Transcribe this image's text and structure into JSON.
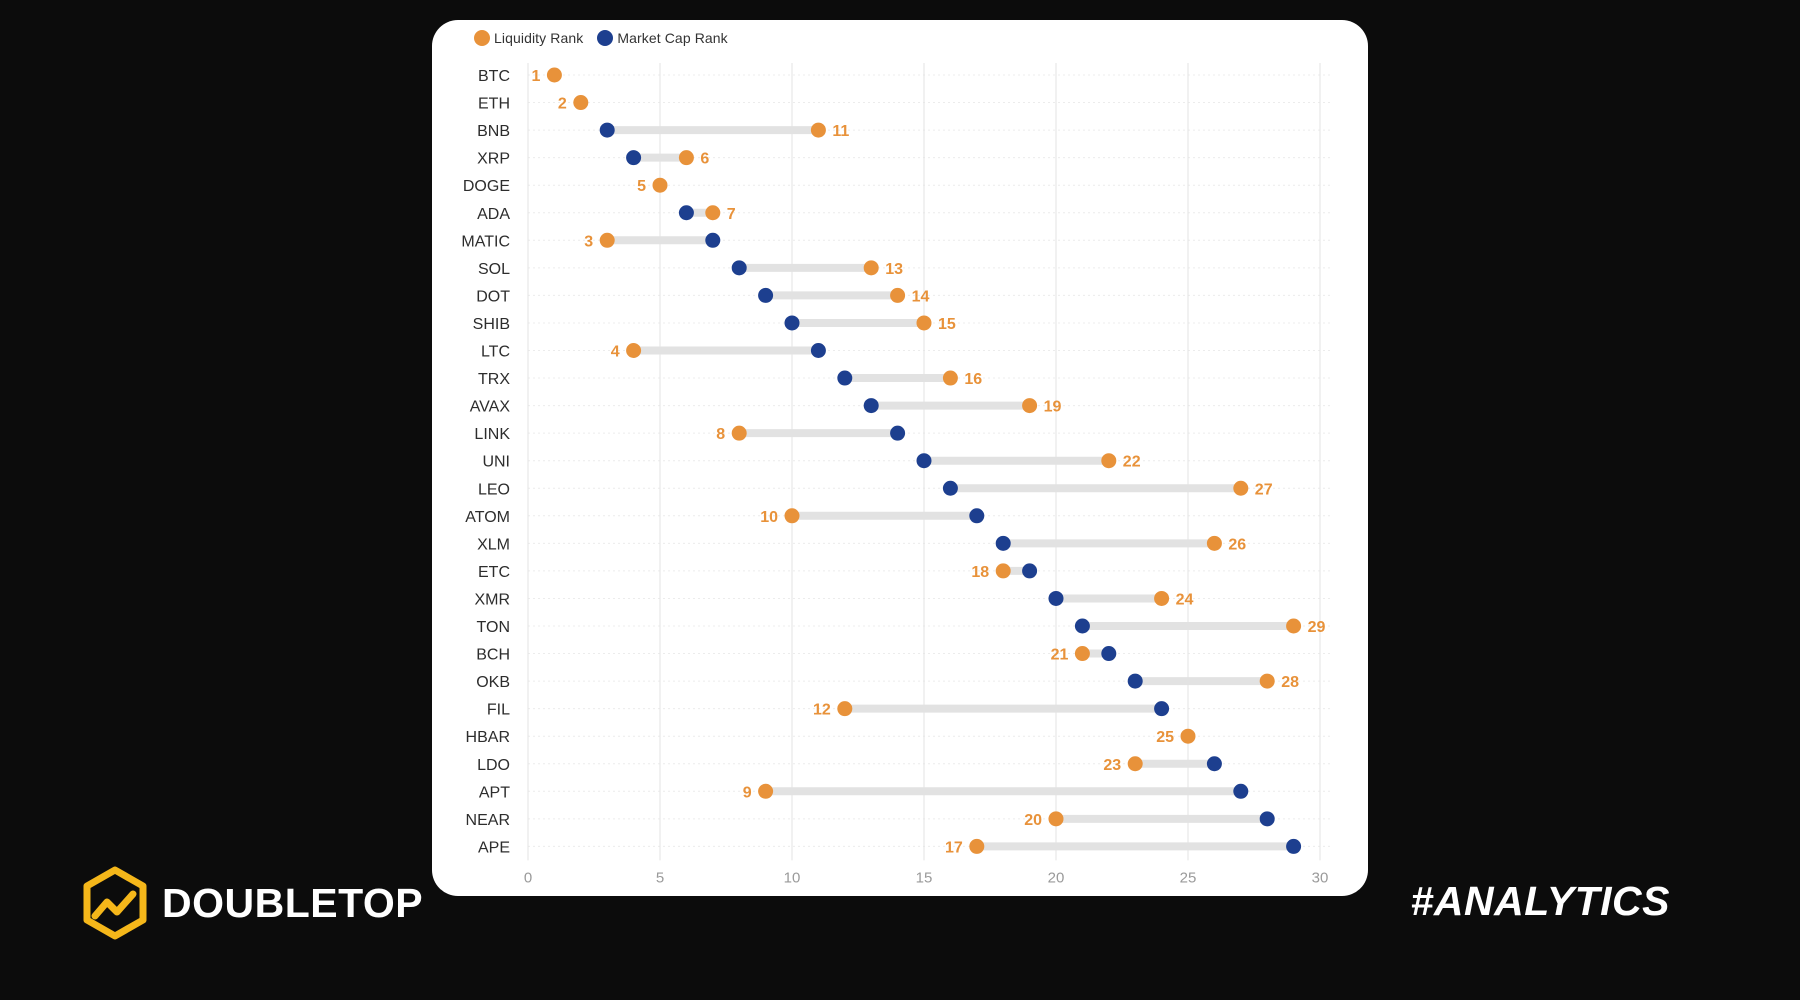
{
  "brand": {
    "name": "DOUBLETOP",
    "icon": "doubletop-logo-icon",
    "accent": "#f5b71a"
  },
  "hashtag": "#ANALYTICS",
  "chart_data": {
    "type": "dumbbell",
    "title": "",
    "xlabel": "",
    "ylabel": "",
    "xlim": [
      0,
      30
    ],
    "x_ticks": [
      0,
      5,
      10,
      15,
      20,
      25,
      30
    ],
    "grid": true,
    "legend_position": "top-left",
    "series": [
      {
        "name": "Liquidity Rank",
        "color": "#e8923a"
      },
      {
        "name": "Market Cap Rank",
        "color": "#1d3f8f"
      }
    ],
    "connector_color": "#e2e2e2",
    "rows": [
      {
        "label": "BTC",
        "liquidity": 1,
        "market_cap": 1
      },
      {
        "label": "ETH",
        "liquidity": 2,
        "market_cap": 2
      },
      {
        "label": "BNB",
        "liquidity": 11,
        "market_cap": 3
      },
      {
        "label": "XRP",
        "liquidity": 6,
        "market_cap": 4
      },
      {
        "label": "DOGE",
        "liquidity": 5,
        "market_cap": 5
      },
      {
        "label": "ADA",
        "liquidity": 7,
        "market_cap": 6
      },
      {
        "label": "MATIC",
        "liquidity": 3,
        "market_cap": 7
      },
      {
        "label": "SOL",
        "liquidity": 13,
        "market_cap": 8
      },
      {
        "label": "DOT",
        "liquidity": 14,
        "market_cap": 9
      },
      {
        "label": "SHIB",
        "liquidity": 15,
        "market_cap": 10
      },
      {
        "label": "LTC",
        "liquidity": 4,
        "market_cap": 11
      },
      {
        "label": "TRX",
        "liquidity": 16,
        "market_cap": 12
      },
      {
        "label": "AVAX",
        "liquidity": 19,
        "market_cap": 13
      },
      {
        "label": "LINK",
        "liquidity": 8,
        "market_cap": 14
      },
      {
        "label": "UNI",
        "liquidity": 22,
        "market_cap": 15
      },
      {
        "label": "LEO",
        "liquidity": 27,
        "market_cap": 16
      },
      {
        "label": "ATOM",
        "liquidity": 10,
        "market_cap": 17
      },
      {
        "label": "XLM",
        "liquidity": 26,
        "market_cap": 18
      },
      {
        "label": "ETC",
        "liquidity": 18,
        "market_cap": 19
      },
      {
        "label": "XMR",
        "liquidity": 24,
        "market_cap": 20
      },
      {
        "label": "TON",
        "liquidity": 29,
        "market_cap": 21
      },
      {
        "label": "BCH",
        "liquidity": 21,
        "market_cap": 22
      },
      {
        "label": "OKB",
        "liquidity": 28,
        "market_cap": 23
      },
      {
        "label": "FIL",
        "liquidity": 12,
        "market_cap": 24
      },
      {
        "label": "HBAR",
        "liquidity": 25,
        "market_cap": 25
      },
      {
        "label": "LDO",
        "liquidity": 23,
        "market_cap": 26
      },
      {
        "label": "APT",
        "liquidity": 9,
        "market_cap": 27
      },
      {
        "label": "NEAR",
        "liquidity": 20,
        "market_cap": 28
      },
      {
        "label": "APE",
        "liquidity": 17,
        "market_cap": 29
      }
    ]
  }
}
